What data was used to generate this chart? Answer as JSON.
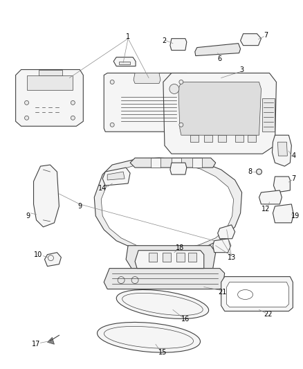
{
  "bg_color": "#ffffff",
  "line_color": "#404040",
  "label_color": "#000000",
  "figsize": [
    4.38,
    5.33
  ],
  "dpi": 100,
  "lw": 0.8,
  "label_fs": 7
}
